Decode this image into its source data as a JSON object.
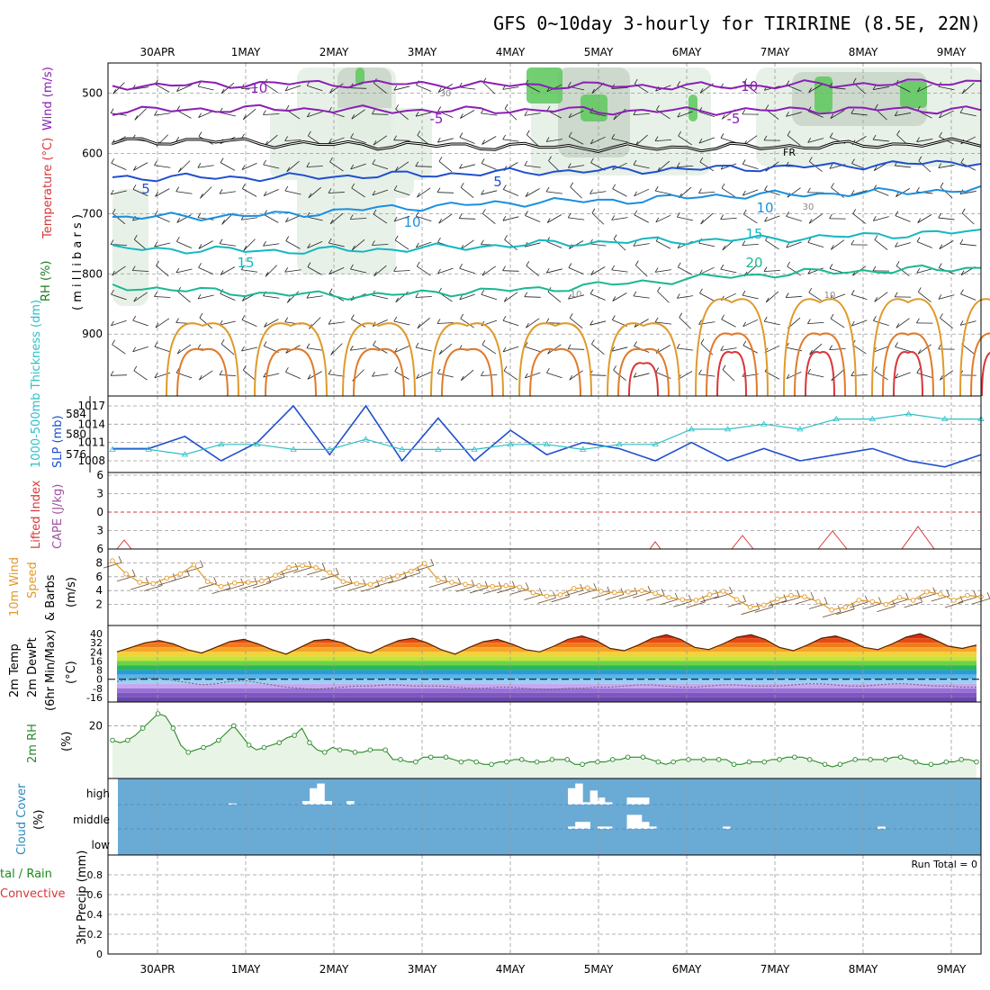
{
  "title": "GFS 0~10day 3-hourly for TIRIRINE (8.5E, 22N)",
  "dates": [
    "30APR",
    "1MAY",
    "2MAY",
    "3MAY",
    "4MAY",
    "5MAY",
    "6MAY",
    "7MAY",
    "8MAY",
    "9MAY"
  ],
  "panel_labels": {
    "p1_wind": "Wind (m/s)",
    "p1_temp": "Temperature (°C)",
    "p1_rh": "RH (%)",
    "p1_mb": "( m i l l i b a r s )",
    "p2_thick": "1000-500mb Thickness (dm)",
    "p2_slp": "SLP (mb)",
    "p3_li": "Lifted Index",
    "p3_cape": "CAPE (J/kg)",
    "p4_a": "10m Wind",
    "p4_b": "Speed",
    "p4_c": "& Barbs",
    "p4_unit": "(m/s)",
    "p5_a": "2m Temp",
    "p5_b": "2m DewPt",
    "p5_c": "(6hr Min/Max)",
    "p5_unit": "(°C)",
    "p6_a": "2m RH",
    "p6_unit": "(%)",
    "p7_a": "Cloud Cover",
    "p7_unit": "(%)",
    "p8_a": "tal / Rain",
    "p8_b": "Convective",
    "p8_c": "3hr Precip (mm)",
    "run_total": "Run Total = 0"
  },
  "colors": {
    "purple": "#8a1fb4",
    "blue": "#1f4fd0",
    "lightblue": "#1a8fe0",
    "teal": "#12b8c0",
    "green": "#1ab890",
    "orange": "#e09a2a",
    "red": "#d8363a",
    "cloud": "#6aabd6",
    "rhfill": "#e8f4e6",
    "rhline": "#2a8a2a"
  },
  "chart_data": [
    {
      "panel": "upper-air cross-section",
      "type": "line",
      "y_axis_label": "millibars",
      "y_ticks": [
        500,
        600,
        700,
        800,
        900
      ],
      "ylim": [
        1000,
        450
      ],
      "contour_labels": [
        {
          "text": "-10",
          "level": -10
        },
        {
          "text": "-10",
          "level": -10
        },
        {
          "text": "-5",
          "level": -5
        },
        {
          "text": "-5",
          "level": -5
        },
        {
          "text": "FR",
          "level": 0
        },
        {
          "text": "5",
          "level": 5
        },
        {
          "text": "5",
          "level": 5
        },
        {
          "text": "10",
          "level": 10
        },
        {
          "text": "10",
          "level": 10
        },
        {
          "text": "15",
          "level": 15
        },
        {
          "text": "15",
          "level": 15
        },
        {
          "text": "20",
          "level": 20
        }
      ],
      "rh_labels": [
        "30",
        "30",
        "10",
        "10"
      ],
      "series": [
        {
          "level": -10,
          "mb": [
            488,
            486,
            484,
            484,
            486,
            487,
            488,
            489,
            486,
            484,
            480
          ]
        },
        {
          "level": -5,
          "mb": [
            530,
            527,
            526,
            528,
            529,
            528,
            530,
            529,
            528,
            527,
            528
          ]
        },
        {
          "level": 0,
          "mb": [
            582,
            578,
            584,
            586,
            587,
            589,
            591,
            590,
            588,
            585,
            582
          ]
        },
        {
          "level": 5,
          "mb": [
            640,
            640,
            640,
            637,
            634,
            630,
            628,
            625,
            622,
            618,
            614
          ]
        },
        {
          "level": 10,
          "mb": [
            706,
            705,
            702,
            692,
            686,
            680,
            678,
            670,
            668,
            664,
            660
          ]
        },
        {
          "level": 15,
          "mb": [
            758,
            760,
            762,
            760,
            756,
            750,
            746,
            744,
            740,
            735,
            730
          ]
        },
        {
          "level": 20,
          "mb": [
            820,
            828,
            834,
            836,
            830,
            825,
            815,
            805,
            798,
            794,
            790
          ]
        }
      ]
    },
    {
      "panel": "thickness / slp",
      "type": "line",
      "y_ticks_left": [
        576,
        580,
        584
      ],
      "y_ticks_right": [
        1008,
        1011,
        1014,
        1017
      ],
      "series": [
        {
          "name": "SLP (mb)",
          "axis": "right",
          "values": [
            1010,
            1010,
            1012,
            1008,
            1011,
            1017,
            1009,
            1017,
            1008,
            1015,
            1008,
            1013,
            1009,
            1011,
            1010,
            1008,
            1011,
            1008,
            1010,
            1008,
            1009,
            1010,
            1008,
            1007,
            1009
          ]
        },
        {
          "name": "1000-500mb Thickness (dm)",
          "axis": "left",
          "values": [
            577,
            577,
            576,
            578,
            578,
            577,
            577,
            579,
            577,
            577,
            577,
            578,
            578,
            577,
            578,
            578,
            581,
            581,
            582,
            581,
            583,
            583,
            584,
            583,
            583
          ]
        }
      ]
    },
    {
      "panel": "lifted index / cape",
      "type": "line",
      "y_ticks": [
        -6,
        -3,
        0,
        3,
        6
      ],
      "ylim": [
        -6,
        6
      ]
    },
    {
      "panel": "10m wind speed",
      "type": "line",
      "y_ticks": [
        2,
        4,
        6,
        8
      ],
      "ylim": [
        0,
        10
      ],
      "values": [
        8.3,
        6.4,
        5.2,
        5.0,
        5.8,
        6.4,
        7.7,
        5.3,
        4.6,
        5.1,
        5.2,
        5.4,
        6.2,
        7.3,
        7.6,
        7.3,
        6.6,
        5.3,
        5.0,
        4.9,
        5.6,
        6.1,
        6.8,
        7.9,
        5.5,
        5.2,
        4.9,
        4.7,
        4.6,
        4.7,
        4.5,
        3.7,
        3.2,
        3.4,
        4.3,
        4.4,
        3.9,
        3.7,
        3.8,
        4.0,
        3.6,
        3.0,
        2.7,
        2.6,
        3.4,
        3.9,
        2.7,
        1.6,
        1.9,
        2.8,
        3.3,
        3.1,
        2.4,
        1.2,
        1.6,
        2.6,
        2.4,
        2.0,
        3.0,
        2.6,
        3.8,
        3.5,
        2.6,
        3.3,
        3.1
      ]
    },
    {
      "panel": "2m temp / dewpoint",
      "type": "area",
      "y_ticks": [
        -16,
        -8,
        0,
        8,
        16,
        24,
        32,
        40
      ],
      "ylim": [
        -20,
        44
      ],
      "temp": [
        24,
        28,
        32,
        34,
        31,
        26,
        23,
        28,
        33,
        35,
        31,
        26,
        22,
        28,
        34,
        35,
        32,
        26,
        23,
        29,
        34,
        36,
        32,
        26,
        22,
        28,
        33,
        35,
        31,
        26,
        24,
        29,
        35,
        38,
        34,
        27,
        25,
        30,
        36,
        39,
        35,
        28,
        26,
        31,
        37,
        39,
        35,
        28,
        25,
        30,
        36,
        38,
        34,
        28,
        26,
        31,
        37,
        40,
        35,
        29,
        27,
        30
      ],
      "dewpoint": [
        -2,
        0,
        1,
        1,
        -1,
        -3,
        -5,
        -4,
        -2,
        -1,
        -3,
        -5,
        -7,
        -8,
        -9,
        -8,
        -7,
        -6,
        -6,
        -5,
        -5,
        -6,
        -6,
        -6,
        -7,
        -8,
        -8,
        -7,
        -7,
        -8,
        -9,
        -9,
        -8,
        -8,
        -7,
        -7,
        -6,
        -5,
        -5,
        -6,
        -7,
        -7,
        -6,
        -5,
        -5,
        -6,
        -6,
        -6,
        -5,
        -4,
        -4,
        -5,
        -6,
        -6,
        -5,
        -4,
        -4,
        -5,
        -6,
        -6,
        -7,
        -7
      ]
    },
    {
      "panel": "2m rh",
      "type": "area",
      "y_ticks": [
        20
      ],
      "ylim": [
        0,
        28
      ],
      "values": [
        14,
        13,
        14,
        16,
        19,
        22,
        25,
        24,
        19,
        12,
        9,
        10,
        11,
        12,
        14,
        17,
        20,
        16,
        12,
        10,
        11,
        12,
        13,
        15,
        16,
        19,
        13,
        10,
        9,
        11,
        10,
        10,
        9,
        9,
        10,
        10,
        10,
        6,
        6,
        5,
        5,
        7,
        7,
        7,
        7,
        6,
        5,
        6,
        5,
        4,
        4,
        5,
        5,
        6,
        6,
        5,
        5,
        5,
        6,
        6,
        6,
        4,
        4,
        5,
        5,
        5,
        6,
        6,
        7,
        7,
        7,
        6,
        5,
        4,
        5,
        6,
        6,
        6,
        6,
        6,
        6,
        6,
        4,
        4,
        5,
        5,
        5,
        6,
        6,
        7,
        7,
        7,
        6,
        5,
        4,
        3,
        4,
        5,
        6,
        6,
        6,
        6,
        6,
        7,
        7,
        6,
        5,
        4,
        4,
        4,
        5,
        5,
        6,
        6,
        5
      ]
    },
    {
      "panel": "cloud cover",
      "type": "bar",
      "y_ticks": [
        "high",
        "middle",
        "low"
      ],
      "high_bars": [
        0,
        0,
        0,
        0,
        0,
        0,
        0,
        0,
        0,
        0,
        0,
        0,
        0,
        0,
        0,
        5,
        0,
        0,
        0,
        0,
        0,
        0,
        0,
        0,
        0,
        15,
        70,
        90,
        15,
        0,
        0,
        15,
        0,
        0,
        0,
        0,
        0,
        0,
        0,
        0,
        0,
        0,
        0,
        0,
        0,
        0,
        0,
        0,
        0,
        0,
        0,
        0,
        0,
        0,
        0,
        0,
        0,
        0,
        0,
        0,
        0,
        70,
        90,
        10,
        60,
        30,
        10,
        0,
        0,
        30,
        30,
        30,
        0,
        0,
        0,
        0,
        0,
        0,
        0,
        0,
        0,
        0,
        0,
        0,
        0,
        0,
        0,
        0,
        0,
        0,
        0,
        0,
        0,
        0,
        0,
        0,
        0,
        0,
        0,
        0,
        0,
        0,
        0,
        0,
        0,
        0,
        0,
        0,
        0,
        0,
        0,
        0,
        0,
        0,
        0,
        0,
        0
      ],
      "middle_bars": [
        0,
        0,
        0,
        0,
        0,
        0,
        0,
        0,
        0,
        0,
        0,
        0,
        0,
        0,
        0,
        0,
        0,
        0,
        0,
        0,
        0,
        0,
        0,
        0,
        0,
        0,
        0,
        0,
        0,
        0,
        0,
        0,
        0,
        0,
        0,
        0,
        0,
        0,
        0,
        0,
        0,
        0,
        0,
        0,
        0,
        0,
        0,
        0,
        0,
        0,
        0,
        0,
        0,
        0,
        0,
        0,
        0,
        0,
        0,
        0,
        0,
        10,
        30,
        30,
        0,
        10,
        10,
        0,
        0,
        60,
        60,
        30,
        10,
        0,
        0,
        0,
        0,
        0,
        0,
        0,
        0,
        0,
        10,
        0,
        0,
        0,
        0,
        0,
        0,
        0,
        0,
        0,
        0,
        0,
        0,
        0,
        0,
        0,
        0,
        0,
        0,
        0,
        0,
        10,
        0,
        0,
        0,
        0,
        0,
        0,
        0,
        0,
        0,
        0,
        0,
        0,
        0
      ]
    },
    {
      "panel": "3hr precip",
      "type": "bar",
      "y_ticks": [
        0,
        0.2,
        0.4,
        0.6,
        0.8
      ],
      "ylim": [
        0,
        1
      ],
      "run_total": 0
    }
  ]
}
